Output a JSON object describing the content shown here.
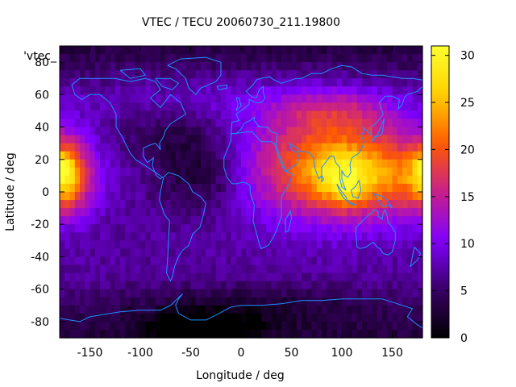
{
  "chart_data": {
    "type": "heatmap",
    "title": "VTEC / TECU 20060730_211.19800",
    "xlabel": "Longitude / deg",
    "ylabel": "Latitude / deg",
    "legend_entry": "'vtec_",
    "xlim": [
      -180,
      180
    ],
    "ylim": [
      -90,
      90
    ],
    "xticks": [
      -150,
      -100,
      -50,
      0,
      50,
      100,
      150
    ],
    "yticks": [
      -80,
      -60,
      -40,
      -20,
      0,
      20,
      40,
      60,
      80
    ],
    "colorbar": {
      "range": [
        0,
        31
      ],
      "ticks": [
        0,
        5,
        10,
        15,
        20,
        25,
        30
      ]
    },
    "palette": [
      "#000000",
      "#3a0066",
      "#8000ff",
      "#c8208a",
      "#ff5a00",
      "#ffd000",
      "#ffff30"
    ],
    "coastline_color": "#1f8fff",
    "grid": false,
    "features": [
      {
        "lon": 90,
        "lat": 15,
        "sx": 60,
        "sy": 22,
        "value": 15
      },
      {
        "lon": 95,
        "lat": 10,
        "sx": 20,
        "sy": 12,
        "value": 6
      },
      {
        "lon": 108,
        "lat": 0,
        "sx": 10,
        "sy": 6,
        "value": 4
      },
      {
        "lon": 150,
        "lat": 8,
        "sx": 40,
        "sy": 15,
        "value": 7
      },
      {
        "lon": -172,
        "lat": 10,
        "sx": 14,
        "sy": 15,
        "value": 13
      },
      {
        "lon": -178,
        "lat": 15,
        "sx": 6,
        "sy": 5,
        "value": 5
      },
      {
        "lon": 90,
        "lat": 48,
        "sx": 40,
        "sy": 10,
        "value": 5
      },
      {
        "lon": 0,
        "lat": 60,
        "sx": 120,
        "sy": 12,
        "value": 2
      },
      {
        "lon": -40,
        "lat": -83,
        "sx": 35,
        "sy": 6,
        "value": -8
      },
      {
        "lon": -40,
        "lat": 10,
        "sx": 30,
        "sy": 15,
        "value": -5
      },
      {
        "lon": -70,
        "lat": 35,
        "sx": 40,
        "sy": 12,
        "value": -3
      },
      {
        "lon": 0,
        "lat": -70,
        "sx": 90,
        "sy": 10,
        "value": -3
      }
    ]
  }
}
